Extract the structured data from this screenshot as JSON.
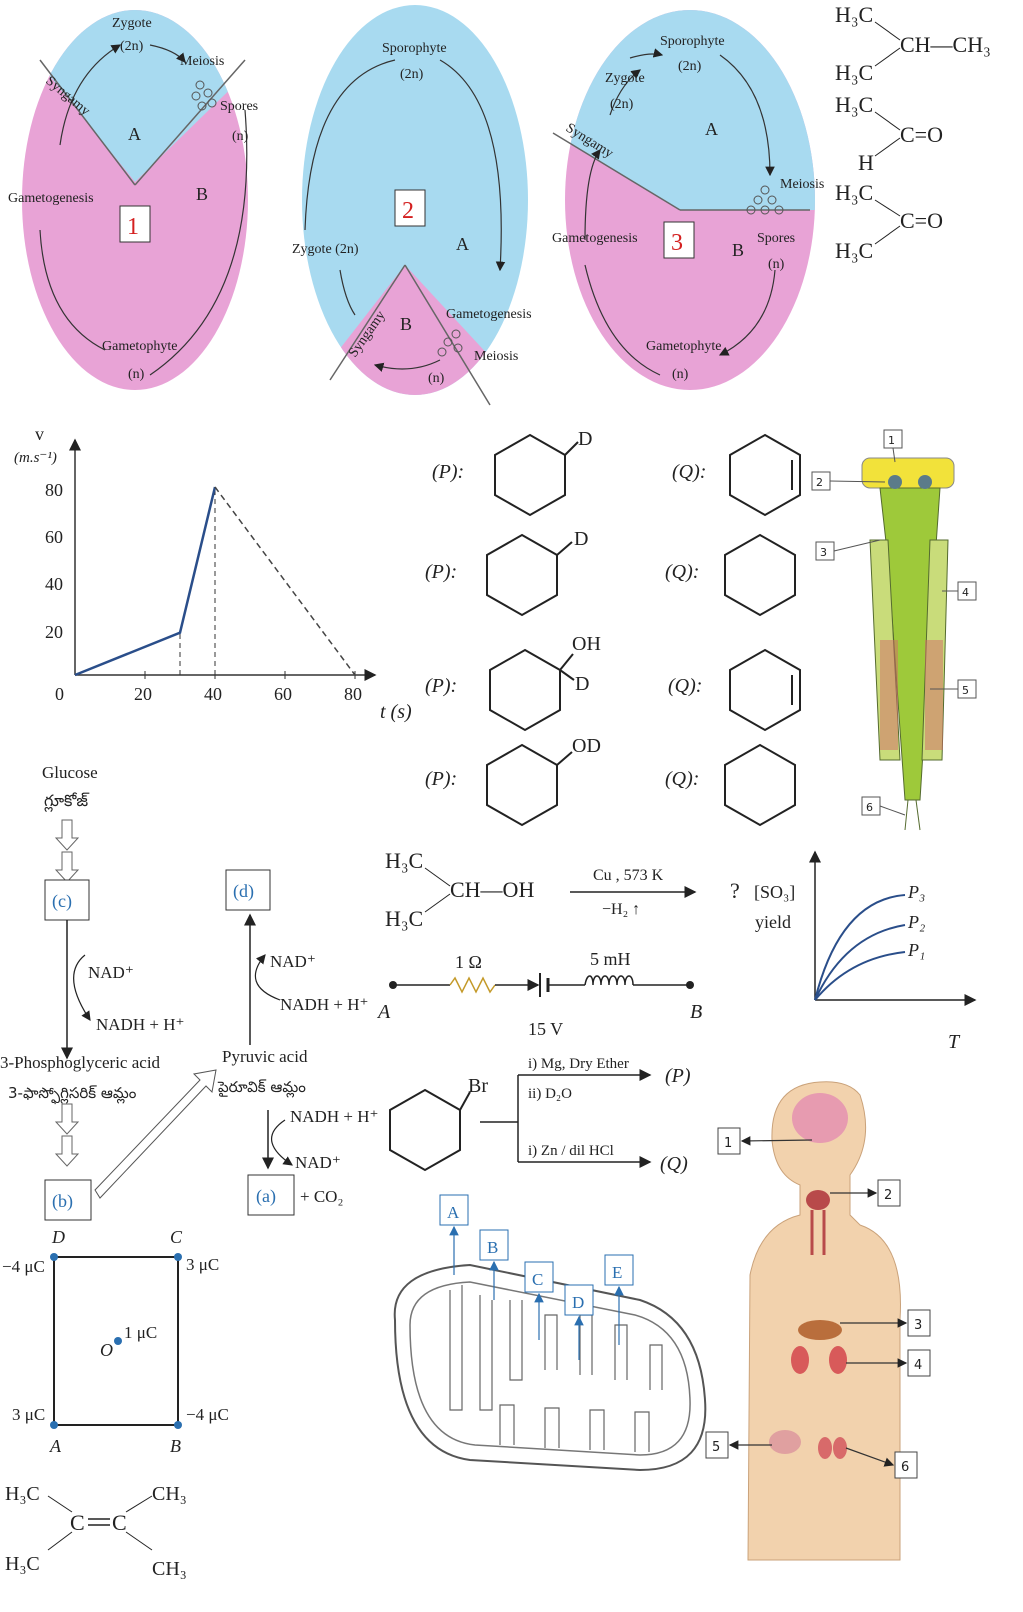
{
  "life_cycles": [
    {
      "number": "1",
      "labels": {
        "zygote": "Zygote",
        "zygote_ploidy": "(2n)",
        "meiosis": "Meiosis",
        "spores": "Spores",
        "spores_ploidy": "(n)",
        "syngamy": "Syngamy",
        "gametogenesis": "Gametogenesis",
        "gametophyte": "Gametophyte",
        "gametophyte_ploidy": "(n)",
        "A": "A",
        "B": "B"
      }
    },
    {
      "number": "2",
      "labels": {
        "sporophyte": "Sporophyte",
        "sporophyte_ploidy": "(2n)",
        "zygote": "Zygote (2n)",
        "A": "A",
        "B": "B",
        "syngamy": "Syngamy",
        "gametogenesis": "Gametogenesis",
        "meiosis": "Meiosis",
        "n": "(n)"
      }
    },
    {
      "number": "3",
      "labels": {
        "sporophyte": "Sporophyte",
        "sporophyte_ploidy": "(2n)",
        "zygote": "Zygote",
        "zygote_ploidy": "(2n)",
        "syngamy": "Syngamy",
        "A": "A",
        "meiosis": "Meiosis",
        "gametogenesis": "Gametogenesis",
        "B": "B",
        "spores": "Spores",
        "spores_ploidy": "(n)",
        "gametophyte": "Gametophyte",
        "gametophyte_ploidy": "(n)"
      }
    }
  ],
  "molecules_top": {
    "m1": {
      "a": "H₃C",
      "b": "CH—CH₃",
      "c": "H₃C"
    },
    "m2": {
      "a": "H₃C",
      "b": "C=O",
      "c": "H"
    },
    "m3": {
      "a": "H₃C",
      "b": "C=O",
      "c": "H₃C"
    }
  },
  "vt_graph": {
    "y_label": "v",
    "y_unit": "(m.s⁻¹)",
    "x_label": "t (s)",
    "y_ticks": [
      "0",
      "20",
      "40",
      "60",
      "80"
    ],
    "x_ticks": [
      "20",
      "40",
      "60",
      "80"
    ]
  },
  "chart_data": {
    "type": "line",
    "xlabel": "t (s)",
    "ylabel": "v (m.s⁻¹)",
    "xlim": [
      0,
      80
    ],
    "ylim": [
      0,
      80
    ],
    "series": [
      {
        "style": "solid",
        "x": [
          0,
          30,
          40
        ],
        "y": [
          0,
          18,
          80
        ]
      },
      {
        "style": "dashed",
        "x": [
          40,
          80
        ],
        "y": [
          80,
          0
        ]
      }
    ],
    "guides": [
      {
        "x": 30,
        "y": 18
      },
      {
        "x": 40,
        "y": 80
      }
    ]
  },
  "pq_rows": [
    {
      "p": "(P):",
      "p_sub": "D",
      "q": "(Q):"
    },
    {
      "p": "(P):",
      "p_sub": "D",
      "q": "(Q):"
    },
    {
      "p": "(P):",
      "p_sub": "OH",
      "p_sub2": "D",
      "q": "(Q):"
    },
    {
      "p": "(P):",
      "p_sub": "OD",
      "q": "(Q):"
    }
  ],
  "insect_labels": [
    "1",
    "2",
    "3",
    "4",
    "5",
    "6"
  ],
  "glycolysis": {
    "glucose": "Glucose",
    "glucose_te": "గ్లూకోజ్",
    "c": "(c)",
    "d": "(d)",
    "b": "(b)",
    "a": "(a)",
    "nad1": "NAD⁺",
    "nadh1": "NADH + H⁺",
    "nad2": "NAD⁺",
    "nadh2": "NADH + H⁺",
    "nadh3": "NADH + H⁺",
    "nad3": "NAD⁺",
    "pga": "3-Phosphoglyceric acid",
    "pga_te": "3-ఫాస్ఫోగ్లిసరిక్ ఆమ్లం",
    "pyruvic": "Pyruvic acid",
    "pyruvic_te": "పైరూవిక్ ఆమ్లం",
    "co2": "+ CO₂"
  },
  "reaction_iso": {
    "a": "H₃C",
    "b": "CH—OH",
    "c": "H₃C",
    "cond_top": "Cu , 573 K",
    "cond_bottom": "−H₂ ↑",
    "q": "?"
  },
  "so3_graph": {
    "y_label": "[SO₃]",
    "y_label2": "yield",
    "x_label": "T",
    "series": [
      "P₃",
      "P₂",
      "P₁"
    ]
  },
  "circuit": {
    "r": "1 Ω",
    "l": "5 mH",
    "v": "15 V",
    "a": "A",
    "b": "B"
  },
  "grignard": {
    "br": "Br",
    "step1": "i) Mg, Dry Ether",
    "step2": "ii) D₂O",
    "p": "(P)",
    "step3": "i) Zn / dil HCl",
    "q": "(Q)"
  },
  "square_charges": {
    "D": "D",
    "C": "C",
    "A": "A",
    "B": "B",
    "O": "O",
    "qD": "−4 μC",
    "qC": "3 μC",
    "qA": "3 μC",
    "qB": "−4 μC",
    "qO": "1 μC"
  },
  "alkene": {
    "a": "H₃C",
    "b": "CH₃",
    "c": "C",
    "d": "C",
    "e": "H₃C",
    "f": "CH₃"
  },
  "mitochondria_labels": [
    "A",
    "B",
    "C",
    "D",
    "E"
  ],
  "body_labels": [
    "1",
    "2",
    "3",
    "4",
    "5",
    "6"
  ],
  "colors": {
    "haploid": "#e8a3d6",
    "diploid": "#a8daf0",
    "blue_text": "#2a6fb0",
    "number_red": "#d42020",
    "skin": "#f2d2ad",
    "insect_green": "#9ec93a"
  }
}
